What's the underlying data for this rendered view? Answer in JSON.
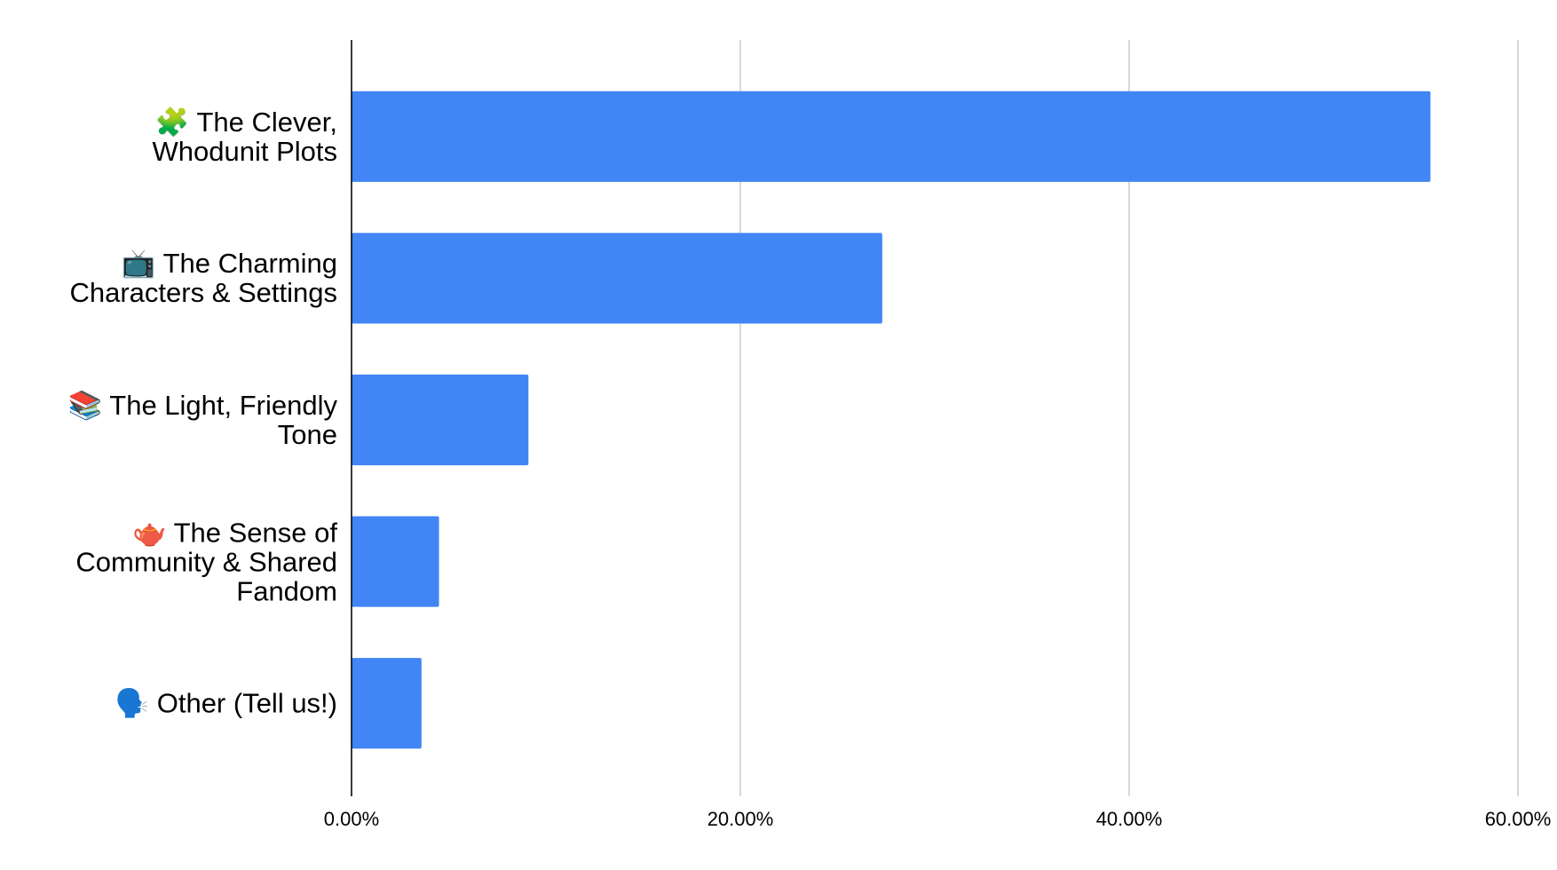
{
  "chart_data": {
    "type": "hbar",
    "categories": [
      "🧩 The Clever, Whodunit Plots",
      "📺 The Charming Characters & Settings",
      "📚 The Light, Friendly Tone",
      "🫖 The Sense of Community & Shared Fandom",
      "🗣️ Other (Tell us!)"
    ],
    "values": [
      55.5,
      27.3,
      9.1,
      4.5,
      3.6
    ],
    "color": "#4285f4",
    "xlim": [
      0,
      60
    ],
    "xticks": [
      {
        "value": 0,
        "label": "0.00%"
      },
      {
        "value": 20,
        "label": "20.00%"
      },
      {
        "value": 40,
        "label": "40.00%"
      },
      {
        "value": 60,
        "label": "60.00%"
      }
    ],
    "grid": true
  }
}
